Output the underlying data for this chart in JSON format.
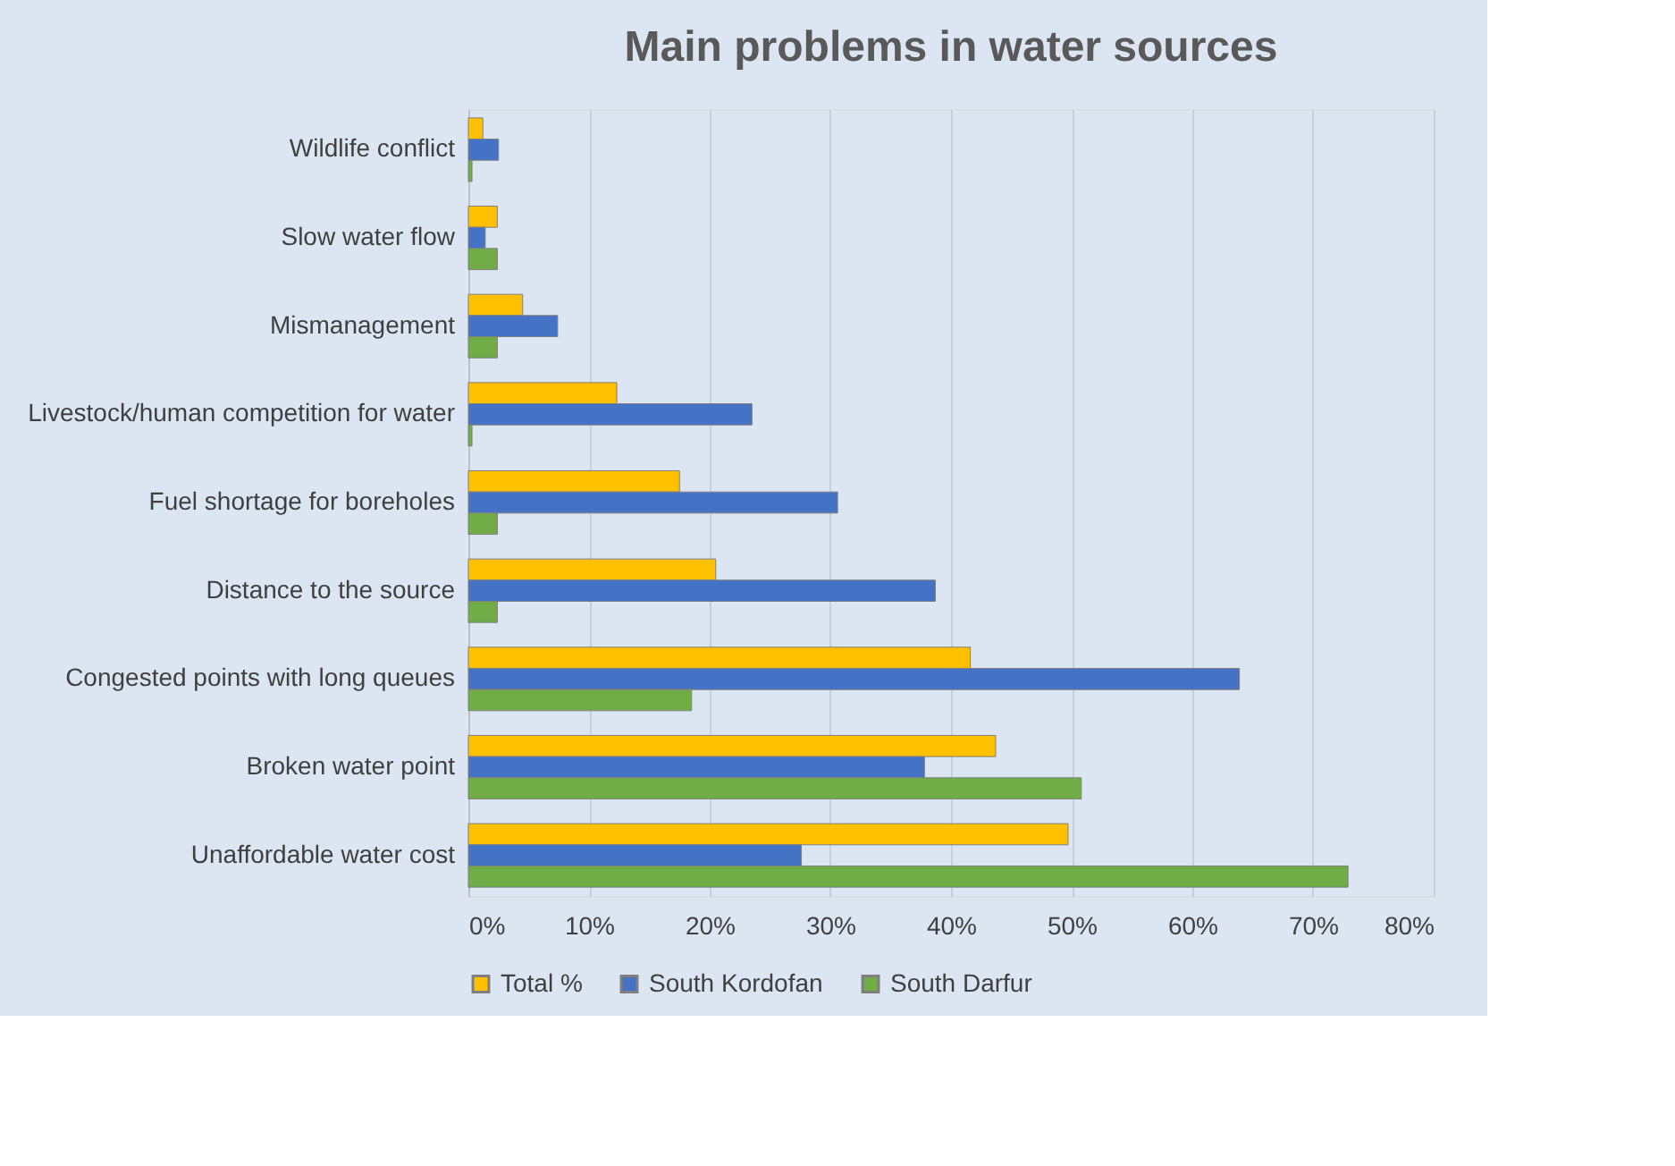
{
  "chart_data": {
    "type": "bar",
    "orientation": "horizontal",
    "title": "Main problems in water sources",
    "categories": [
      "Wildlife conflict",
      "Slow water flow",
      "Mismanagement",
      "Livestock/human competition for water",
      "Fuel shortage for boreholes",
      "Distance to the source",
      "Congested points with long queues",
      "Broken water point",
      "Unaffordable water cost"
    ],
    "series": [
      {
        "name": "Total %",
        "color": "#ffc000",
        "values": [
          0.012,
          0.024,
          0.045,
          0.123,
          0.175,
          0.205,
          0.416,
          0.437,
          0.497
        ]
      },
      {
        "name": "South Kordofan",
        "color": "#4472c4",
        "values": [
          0.025,
          0.014,
          0.074,
          0.235,
          0.306,
          0.387,
          0.639,
          0.378,
          0.276
        ]
      },
      {
        "name": "South Darfur",
        "color": "#70ad47",
        "values": [
          0.003,
          0.024,
          0.024,
          0.003,
          0.024,
          0.024,
          0.185,
          0.508,
          0.729
        ]
      }
    ],
    "xlim": [
      0,
      0.8
    ],
    "xticks": [
      {
        "value": 0,
        "label": "0%"
      },
      {
        "value": 0.1,
        "label": "10%"
      },
      {
        "value": 0.2,
        "label": "20%"
      },
      {
        "value": 0.3,
        "label": "30%"
      },
      {
        "value": 0.4,
        "label": "40%"
      },
      {
        "value": 0.5,
        "label": "50%"
      },
      {
        "value": 0.6,
        "label": "60%"
      },
      {
        "value": 0.7,
        "label": "70%"
      },
      {
        "value": 0.8,
        "label": "80%"
      }
    ],
    "grid": "x",
    "legend": "bottom"
  }
}
